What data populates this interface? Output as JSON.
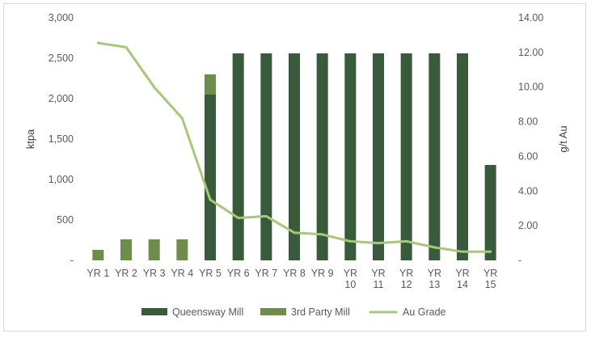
{
  "chart_data": {
    "type": "bar",
    "title": "",
    "categories": [
      "YR 1",
      "YR 2",
      "YR 3",
      "YR 4",
      "YR 5",
      "YR 6",
      "YR 7",
      "YR 8",
      "YR 9",
      "YR 10",
      "YR 11",
      "YR 12",
      "YR 13",
      "YR 14",
      "YR 15"
    ],
    "category_lines": [
      [
        "YR 1"
      ],
      [
        "YR 2"
      ],
      [
        "YR 3"
      ],
      [
        "YR 4"
      ],
      [
        "YR 5"
      ],
      [
        "YR 6"
      ],
      [
        "YR 7"
      ],
      [
        "YR 8"
      ],
      [
        "YR 9"
      ],
      [
        "YR",
        "10"
      ],
      [
        "YR",
        "11"
      ],
      [
        "YR",
        "12"
      ],
      [
        "YR",
        "13"
      ],
      [
        "YR",
        "14"
      ],
      [
        "YR",
        "15"
      ]
    ],
    "series": [
      {
        "name": "Queensway Mill",
        "type": "stacked-bar",
        "axis": "left",
        "color": "#3a5a3c",
        "values": [
          0,
          0,
          0,
          0,
          2050,
          2560,
          2560,
          2560,
          2560,
          2560,
          2560,
          2560,
          2560,
          2560,
          1180
        ]
      },
      {
        "name": "3rd Party Mill",
        "type": "stacked-bar",
        "axis": "left",
        "color": "#6e8d4c",
        "values": [
          130,
          260,
          260,
          260,
          250,
          0,
          0,
          0,
          0,
          0,
          0,
          0,
          0,
          0,
          0
        ]
      },
      {
        "name": "Au Grade",
        "type": "line",
        "axis": "right",
        "color": "#a6c878",
        "values": [
          12.55,
          12.3,
          10.0,
          8.2,
          3.5,
          2.45,
          2.55,
          1.6,
          1.5,
          1.1,
          1.0,
          1.1,
          0.75,
          0.5,
          0.5
        ]
      }
    ],
    "ylabel": "ktpa",
    "ylim": [
      0,
      3000
    ],
    "y_ticks": [
      "-",
      "500",
      "1,000",
      "1,500",
      "2,000",
      "2,500",
      "3,000"
    ],
    "y2label": "g/t Au",
    "y2lim": [
      0,
      14
    ],
    "y2_ticks": [
      "-",
      "2.00",
      "4.00",
      "6.00",
      "8.00",
      "10.00",
      "12.00",
      "14.00"
    ],
    "grid": false,
    "legend": "bottom-center"
  }
}
